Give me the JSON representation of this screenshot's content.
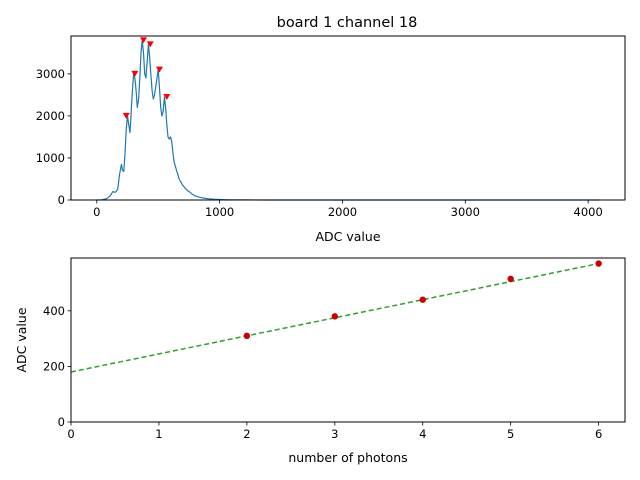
{
  "chart_data": [
    {
      "type": "line",
      "title": "board 1 channel 18",
      "xlabel": "ADC value",
      "ylabel": "",
      "xlim": [
        -210,
        4300
      ],
      "ylim": [
        0,
        3900
      ],
      "xticks": [
        0,
        1000,
        2000,
        3000,
        4000
      ],
      "yticks": [
        0,
        1000,
        2000,
        3000
      ],
      "grid": false,
      "series": [
        {
          "color": "#1f77b4",
          "x": [
            0,
            40,
            80,
            110,
            130,
            150,
            170,
            185,
            200,
            210,
            220,
            230,
            240,
            250,
            260,
            270,
            280,
            290,
            300,
            310,
            320,
            330,
            340,
            350,
            360,
            370,
            380,
            390,
            400,
            410,
            420,
            430,
            440,
            450,
            460,
            470,
            480,
            490,
            500,
            510,
            520,
            530,
            540,
            550,
            560,
            570,
            580,
            590,
            600,
            610,
            620,
            630,
            640,
            650,
            660,
            670,
            680,
            700,
            720,
            740,
            760,
            780,
            800,
            830,
            860,
            900,
            950,
            1000,
            1050,
            1100,
            1200,
            1400,
            1700,
            2000,
            2500,
            3000,
            3500,
            4000,
            4090
          ],
          "y": [
            0,
            5,
            30,
            100,
            200,
            180,
            250,
            600,
            850,
            700,
            680,
            1100,
            1700,
            2000,
            1800,
            1600,
            2100,
            2600,
            3000,
            2900,
            2600,
            2200,
            2400,
            2900,
            3500,
            3800,
            3500,
            3000,
            2900,
            3300,
            3700,
            3400,
            3000,
            2600,
            2400,
            2500,
            2700,
            2900,
            3100,
            2700,
            2200,
            2000,
            2100,
            2450,
            2200,
            1800,
            1500,
            1450,
            1500,
            1400,
            1100,
            900,
            800,
            700,
            600,
            500,
            450,
            350,
            280,
            220,
            180,
            130,
            100,
            70,
            50,
            30,
            20,
            12,
            8,
            5,
            2,
            1,
            0,
            0,
            0,
            0,
            0,
            0,
            0
          ]
        }
      ],
      "peaks": {
        "color": "#ff0000",
        "x": [
          240,
          310,
          380,
          435,
          510,
          570
        ],
        "y": [
          2000,
          3000,
          3800,
          3700,
          3100,
          2450
        ]
      }
    },
    {
      "type": "scatter",
      "title": "",
      "xlabel": "number of photons",
      "ylabel": "ADC value",
      "xlim": [
        0,
        6.3
      ],
      "ylim": [
        0,
        590
      ],
      "xticks": [
        0,
        1,
        2,
        3,
        4,
        5,
        6
      ],
      "yticks": [
        0,
        200,
        400
      ],
      "grid": false,
      "points": {
        "color": "#cc0000",
        "x": [
          2,
          3,
          4,
          5,
          6
        ],
        "y": [
          310,
          380,
          440,
          515,
          570
        ]
      },
      "fit": {
        "color": "#2ca02c",
        "style": "dashed",
        "x": [
          0,
          6
        ],
        "y": [
          180,
          570
        ]
      }
    }
  ]
}
